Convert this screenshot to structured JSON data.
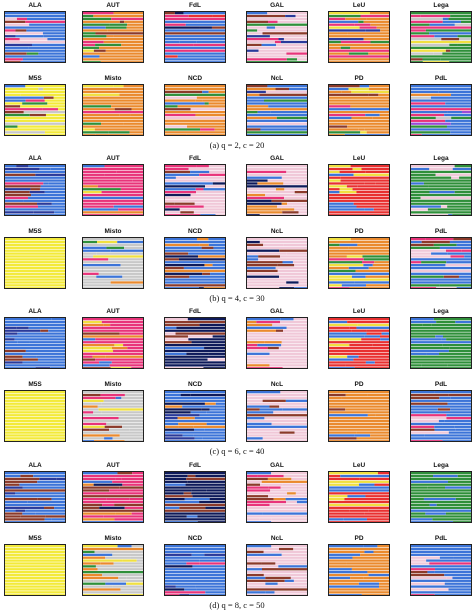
{
  "figure": {
    "rows_a": [
      "ALA",
      "AUT",
      "FdL",
      "GAL",
      "LeU",
      "Lega"
    ],
    "rows_b": [
      "M5S",
      "Misto",
      "NCD",
      "NcL",
      "PD",
      "PdL"
    ],
    "subfigures": [
      {
        "caption": "(a)  q = 2, c = 20",
        "panels": [
          {
            "title": "ALA",
            "colors": [
              "#3c74d8",
              "#e8347a",
              "#2a3a9a",
              "#8b3a2a",
              "#f0c8d8",
              "#2f8f3a"
            ],
            "dominant": "#3c74d8"
          },
          {
            "title": "AUT",
            "colors": [
              "#ea8a2e",
              "#3c74d8",
              "#e8347a",
              "#2f8f3a",
              "#8b3a2a",
              "#f0e040"
            ],
            "dominant": "#ea8a2e"
          },
          {
            "title": "FdL",
            "colors": [
              "#3c74d8",
              "#0e1a5a",
              "#e8347a",
              "#e83030",
              "#8b3a2a",
              "#f0c8d8"
            ],
            "dominant": "#3c74d8"
          },
          {
            "title": "GAL",
            "colors": [
              "#f0c8d8",
              "#3c74d8",
              "#8b3a2a",
              "#2a3a9a",
              "#e8347a",
              "#2f8f3a"
            ],
            "dominant": "#f0c8d8"
          },
          {
            "title": "LeU",
            "colors": [
              "#ea8a2e",
              "#e8347a",
              "#3c74d8",
              "#f0e040",
              "#2a3a9a",
              "#2f8f3a"
            ],
            "dominant": "#ea8a2e"
          },
          {
            "title": "Lega",
            "colors": [
              "#2f8f3a",
              "#e8347a",
              "#3c74d8",
              "#f0e040",
              "#8b3a2a",
              "#c8c8c8"
            ],
            "dominant": "#2f8f3a"
          },
          {
            "title": "M5S",
            "colors": [
              "#f3ea3a",
              "#3c74d8",
              "#e8347a",
              "#2f8f3a",
              "#8b3a2a",
              "#c8c8c8"
            ],
            "dominant": "#f3ea3a"
          },
          {
            "title": "Misto",
            "colors": [
              "#ea8a2e",
              "#3c74d8",
              "#e8347a",
              "#f0e040",
              "#2f8f3a",
              "#8b3a2a"
            ],
            "dominant": "#ea8a2e"
          },
          {
            "title": "NCD",
            "colors": [
              "#3c74d8",
              "#ea8a2e",
              "#e8347a",
              "#2f8f3a",
              "#8b3a2a",
              "#f0c8d8"
            ],
            "dominant": "#ea8a2e"
          },
          {
            "title": "NcL",
            "colors": [
              "#3c74d8",
              "#f0c8d8",
              "#8b3a2a",
              "#2a3a9a",
              "#ea8a2e",
              "#2f8f3a"
            ],
            "dominant": "#3c74d8"
          },
          {
            "title": "PD",
            "colors": [
              "#ea8a2e",
              "#e8347a",
              "#3c74d8",
              "#f0e040",
              "#8b3a2a",
              "#2f8f3a"
            ],
            "dominant": "#ea8a2e"
          },
          {
            "title": "PdL",
            "colors": [
              "#3c74d8",
              "#9a4ad8",
              "#2f8f3a",
              "#e8347a",
              "#c8c8c8",
              "#ea8a2e"
            ],
            "dominant": "#3c74d8"
          }
        ]
      },
      {
        "caption": "(b)  q = 4, c = 30",
        "panels": [
          {
            "title": "ALA",
            "colors": [
              "#3c74d8",
              "#8b3a2a",
              "#2a3a9a",
              "#e8347a"
            ],
            "dominant": "#3c74d8"
          },
          {
            "title": "AUT",
            "colors": [
              "#ea8a2e",
              "#e8347a",
              "#3c74d8",
              "#f0e040",
              "#2f8f3a"
            ],
            "dominant": "#e8347a"
          },
          {
            "title": "FdL",
            "colors": [
              "#0e1a5a",
              "#3c74d8",
              "#f0c8d8",
              "#8b3a2a",
              "#e8347a"
            ],
            "dominant": "#f0c8d8"
          },
          {
            "title": "GAL",
            "colors": [
              "#f0c8d8",
              "#3c74d8",
              "#0e1a5a",
              "#e8347a",
              "#ea8a2e",
              "#8b3a2a"
            ],
            "dominant": "#f0c8d8"
          },
          {
            "title": "LeU",
            "colors": [
              "#e83030",
              "#f0e040",
              "#3c74d8"
            ],
            "dominant": "#e83030"
          },
          {
            "title": "Lega",
            "colors": [
              "#2f8f3a",
              "#3c74d8",
              "#f0c8d8"
            ],
            "dominant": "#2f8f3a"
          },
          {
            "title": "M5S",
            "colors": [
              "#f3ea3a"
            ],
            "dominant": "#f3ea3a"
          },
          {
            "title": "Misto",
            "colors": [
              "#f0e040",
              "#3c74d8",
              "#e8347a",
              "#2f8f3a",
              "#c8c8c8",
              "#ea8a2e"
            ],
            "dominant": "#c8c8c8"
          },
          {
            "title": "NCD",
            "colors": [
              "#3c74d8",
              "#0e1a5a",
              "#8b3a2a",
              "#ea8a2e"
            ],
            "dominant": "#3c74d8"
          },
          {
            "title": "NcL",
            "colors": [
              "#f0c8d8",
              "#3c74d8",
              "#0e1a5a",
              "#8b3a2a"
            ],
            "dominant": "#f0c8d8"
          },
          {
            "title": "PD",
            "colors": [
              "#ea8a2e",
              "#e8347a",
              "#3c74d8",
              "#f0e040",
              "#2f8f3a"
            ],
            "dominant": "#ea8a2e"
          },
          {
            "title": "PdL",
            "colors": [
              "#3c74d8",
              "#f0c8d8",
              "#e8347a",
              "#2f8f3a",
              "#8b3a2a"
            ],
            "dominant": "#3c74d8"
          }
        ]
      },
      {
        "caption": "(c)  q = 6, c = 40",
        "panels": [
          {
            "title": "ALA",
            "colors": [
              "#3c74d8",
              "#8b3a2a",
              "#2a3a9a"
            ],
            "dominant": "#3c74d8"
          },
          {
            "title": "AUT",
            "colors": [
              "#e8347a",
              "#ea8a2e",
              "#3c74d8",
              "#8b3a2a",
              "#f0e040"
            ],
            "dominant": "#e8347a"
          },
          {
            "title": "FdL",
            "colors": [
              "#0e1a5a",
              "#3c74d8",
              "#8b3a2a",
              "#f0c8d8"
            ],
            "dominant": "#0e1a5a"
          },
          {
            "title": "GAL",
            "colors": [
              "#f0c8d8",
              "#3c74d8",
              "#ea8a2e",
              "#8b3a2a",
              "#e8347a"
            ],
            "dominant": "#f0c8d8"
          },
          {
            "title": "LeU",
            "colors": [
              "#e83030",
              "#f0e040",
              "#3c74d8"
            ],
            "dominant": "#e83030"
          },
          {
            "title": "Lega",
            "colors": [
              "#2f8f3a",
              "#3c74d8"
            ],
            "dominant": "#2f8f3a"
          },
          {
            "title": "M5S",
            "colors": [
              "#f3ea3a"
            ],
            "dominant": "#f3ea3a"
          },
          {
            "title": "Misto",
            "colors": [
              "#c8c8c8",
              "#e8347a",
              "#ea8a2e",
              "#3c74d8",
              "#f0e040",
              "#8b3a2a"
            ],
            "dominant": "#c8c8c8"
          },
          {
            "title": "NCD",
            "colors": [
              "#3c74d8",
              "#2a3a9a",
              "#0e1a5a",
              "#ea8a2e"
            ],
            "dominant": "#3c74d8"
          },
          {
            "title": "NcL",
            "colors": [
              "#f0c8d8",
              "#3c74d8",
              "#8b3a2a"
            ],
            "dominant": "#f0c8d8"
          },
          {
            "title": "PD",
            "colors": [
              "#ea8a2e",
              "#3c74d8",
              "#8b3a2a"
            ],
            "dominant": "#ea8a2e"
          },
          {
            "title": "PdL",
            "colors": [
              "#3c74d8",
              "#f0c8d8",
              "#8b3a2a",
              "#e8347a"
            ],
            "dominant": "#3c74d8"
          }
        ]
      },
      {
        "caption": "(d)  q = 8, c = 50",
        "panels": [
          {
            "title": "ALA",
            "colors": [
              "#3c74d8",
              "#8b3a2a",
              "#2a3a9a"
            ],
            "dominant": "#3c74d8"
          },
          {
            "title": "AUT",
            "colors": [
              "#e8347a",
              "#ea8a2e",
              "#3c74d8",
              "#8b3a2a",
              "#0e1a5a"
            ],
            "dominant": "#e8347a"
          },
          {
            "title": "FdL",
            "colors": [
              "#0e1a5a",
              "#3c74d8",
              "#8b3a2a"
            ],
            "dominant": "#0e1a5a"
          },
          {
            "title": "GAL",
            "colors": [
              "#f0c8d8",
              "#3c74d8",
              "#8b3a2a",
              "#ea8a2e",
              "#e8347a"
            ],
            "dominant": "#f0c8d8"
          },
          {
            "title": "LeU",
            "colors": [
              "#e83030",
              "#f0e040",
              "#3c74d8"
            ],
            "dominant": "#e83030"
          },
          {
            "title": "Lega",
            "colors": [
              "#2f8f3a",
              "#3c74d8"
            ],
            "dominant": "#2f8f3a"
          },
          {
            "title": "M5S",
            "colors": [
              "#f3ea3a"
            ],
            "dominant": "#f3ea3a"
          },
          {
            "title": "Misto",
            "colors": [
              "#c8c8c8",
              "#e8347a",
              "#ea8a2e",
              "#3c74d8",
              "#f0e040",
              "#2f8f3a"
            ],
            "dominant": "#c8c8c8"
          },
          {
            "title": "NCD",
            "colors": [
              "#3c74d8",
              "#2a3a9a",
              "#0e1a5a",
              "#e8347a"
            ],
            "dominant": "#3c74d8"
          },
          {
            "title": "NcL",
            "colors": [
              "#f0c8d8",
              "#3c74d8",
              "#8b3a2a"
            ],
            "dominant": "#f0c8d8"
          },
          {
            "title": "PD",
            "colors": [
              "#ea8a2e",
              "#3c74d8"
            ],
            "dominant": "#ea8a2e"
          },
          {
            "title": "PdL",
            "colors": [
              "#3c74d8",
              "#f0c8d8",
              "#e8347a",
              "#8b3a2a"
            ],
            "dominant": "#3c74d8"
          }
        ]
      }
    ]
  }
}
